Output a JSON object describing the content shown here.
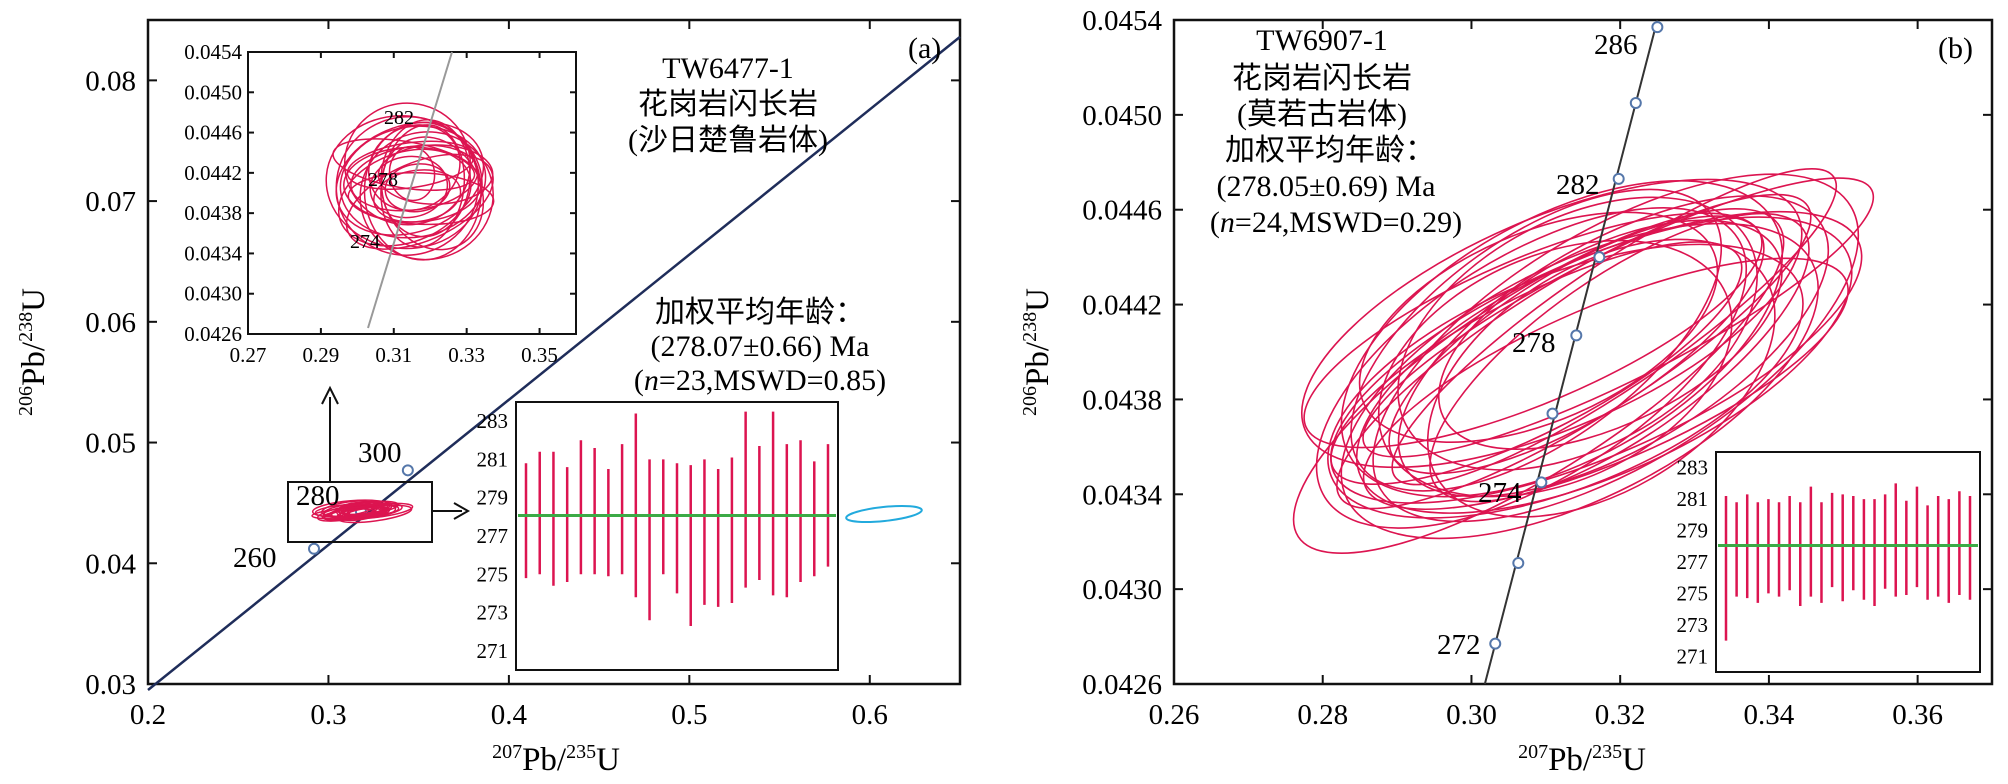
{
  "colors": {
    "ellipse": "#dc1450",
    "mean": "#3caa46",
    "axis": "#111111",
    "concordia_a": "#1f2d5a",
    "concordia_b": "#333333",
    "outlier": "#22aadd",
    "node": "#5577aa"
  },
  "chart_data": [
    {
      "type": "scatter",
      "panel": "(a)",
      "sample": "TW6477-1",
      "rock": "花岗岩闪长岩",
      "pluton": "(沙日楚鲁岩体)",
      "xlabel": {
        "pre": "207",
        "iso": "Pb/",
        "pre2": "235",
        "iso2": "U"
      },
      "ylabel": {
        "pre": "206",
        "iso": "Pb/",
        "pre2": "238",
        "iso2": "U"
      },
      "xlim": [
        0.2,
        0.65
      ],
      "ylim": [
        0.03,
        0.085
      ],
      "xticks": [
        "0.2",
        "0.3",
        "0.4",
        "0.5",
        "0.6"
      ],
      "yticks": [
        "0.03",
        "0.04",
        "0.05",
        "0.06",
        "0.07",
        "0.08"
      ],
      "concordia_labels": [
        "260",
        "280",
        "300"
      ],
      "age_title": "加权平均年龄：",
      "age_value": "(278.07±0.66) Ma",
      "age_stats": {
        "n_sym": "n",
        "rest": "=23,MSWD=0.85"
      },
      "mean_age": 278.07,
      "n": 23,
      "mswd": 0.85,
      "inset_concordia": {
        "xlim": [
          0.27,
          0.36
        ],
        "ylim": [
          0.0426,
          0.0454
        ],
        "xticks": [
          "0.27",
          "0.29",
          "0.31",
          "0.33",
          "0.35"
        ],
        "yticks": [
          "0.0426",
          "0.0430",
          "0.0434",
          "0.0438",
          "0.0442",
          "0.0446",
          "0.0450",
          "0.0454"
        ],
        "age_labels": [
          "274",
          "278",
          "282"
        ]
      },
      "inset_ages": {
        "ylim": [
          270,
          284
        ],
        "yticks": [
          "271",
          "273",
          "275",
          "277",
          "279",
          "281",
          "283"
        ],
        "ages": [
          277.8,
          278.2,
          277.9,
          277.6,
          278.5,
          278.3,
          277.7,
          278.4,
          278.6,
          276.8,
          278.0,
          277.4,
          276.5,
          277.2,
          276.9,
          277.3,
          278.9,
          278.2,
          278.7,
          277.8,
          278.3,
          277.9,
          278.6
        ],
        "errors": [
          3.0,
          3.2,
          3.5,
          3.0,
          3.5,
          3.3,
          2.8,
          3.4,
          4.8,
          4.2,
          3.0,
          3.4,
          4.2,
          3.8,
          3.6,
          3.8,
          4.6,
          3.5,
          4.8,
          4.0,
          3.7,
          3.0,
          3.2
        ]
      }
    },
    {
      "type": "scatter",
      "panel": "(b)",
      "sample": "TW6907-1",
      "rock": "花岗岩闪长岩",
      "pluton": "(莫若古岩体)",
      "xlabel": {
        "pre": "207",
        "iso": "Pb/",
        "pre2": "235",
        "iso2": "U"
      },
      "ylabel": {
        "pre": "206",
        "iso": "Pb/",
        "pre2": "238",
        "iso2": "U"
      },
      "xlim": [
        0.26,
        0.37
      ],
      "ylim": [
        0.0426,
        0.0454
      ],
      "xticks": [
        "0.26",
        "0.28",
        "0.30",
        "0.32",
        "0.34",
        "0.36"
      ],
      "yticks": [
        "0.0426",
        "0.0430",
        "0.0434",
        "0.0438",
        "0.0442",
        "0.0446",
        "0.0450",
        "0.0454"
      ],
      "concordia_labels": [
        "272",
        "274",
        "278",
        "282",
        "286"
      ],
      "age_title": "加权平均年龄：",
      "age_value": "(278.05±0.69) Ma",
      "age_stats": {
        "n_sym": "n",
        "rest": "=24,MSWD=0.29"
      },
      "mean_age": 278.05,
      "n": 24,
      "mswd": 0.29,
      "inset_ages": {
        "ylim": [
          270,
          284
        ],
        "yticks": [
          "271",
          "273",
          "275",
          "277",
          "279",
          "281",
          "283"
        ],
        "ages": [
          276.6,
          277.8,
          278.0,
          277.6,
          278.0,
          277.8,
          278.2,
          277.5,
          278.3,
          277.6,
          278.4,
          277.9,
          278.2,
          277.8,
          277.6,
          278.3,
          278.4,
          277.9,
          278.6,
          277.6,
          278.0,
          277.7,
          278.2,
          277.9
        ],
        "errors": [
          4.6,
          3.0,
          3.3,
          3.2,
          3.0,
          3.0,
          3.0,
          3.3,
          3.5,
          3.2,
          3.0,
          3.4,
          3.0,
          3.2,
          3.4,
          3.0,
          3.6,
          3.0,
          3.2,
          3.0,
          3.2,
          3.3,
          3.3,
          3.3
        ]
      }
    }
  ]
}
